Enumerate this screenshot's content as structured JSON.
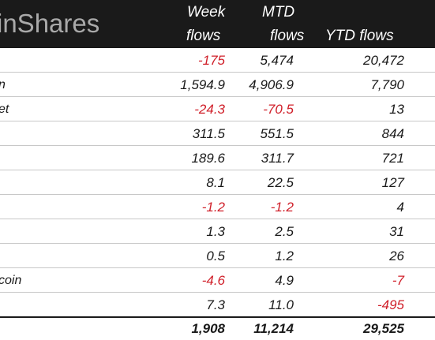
{
  "header": {
    "brand": "inShares",
    "col1_line1": "Week",
    "col1_line2": "flows",
    "col2_line1": "MTD",
    "col2_line2": "flows",
    "col3_line2": "YTD flows"
  },
  "rows": [
    {
      "name": "",
      "week": "-175",
      "mtd": "5,474",
      "ytd": "20,472",
      "week_neg": true,
      "mtd_neg": false,
      "ytd_neg": false
    },
    {
      "name": "n",
      "week": "1,594.9",
      "mtd": "4,906.9",
      "ytd": "7,790",
      "week_neg": false,
      "mtd_neg": false,
      "ytd_neg": false
    },
    {
      "name": "et",
      "week": "-24.3",
      "mtd": "-70.5",
      "ytd": "13",
      "week_neg": true,
      "mtd_neg": true,
      "ytd_neg": false
    },
    {
      "name": "",
      "week": "311.5",
      "mtd": "551.5",
      "ytd": "844",
      "week_neg": false,
      "mtd_neg": false,
      "ytd_neg": false
    },
    {
      "name": "",
      "week": "189.6",
      "mtd": "311.7",
      "ytd": "721",
      "week_neg": false,
      "mtd_neg": false,
      "ytd_neg": false
    },
    {
      "name": "",
      "week": "8.1",
      "mtd": "22.5",
      "ytd": "127",
      "week_neg": false,
      "mtd_neg": false,
      "ytd_neg": false
    },
    {
      "name": "",
      "week": "-1.2",
      "mtd": "-1.2",
      "ytd": "4",
      "week_neg": true,
      "mtd_neg": true,
      "ytd_neg": false
    },
    {
      "name": "",
      "week": "1.3",
      "mtd": "2.5",
      "ytd": "31",
      "week_neg": false,
      "mtd_neg": false,
      "ytd_neg": false
    },
    {
      "name": "",
      "week": "0.5",
      "mtd": "1.2",
      "ytd": "26",
      "week_neg": false,
      "mtd_neg": false,
      "ytd_neg": false
    },
    {
      "name": "coin",
      "week": "-4.6",
      "mtd": "4.9",
      "ytd": "-7",
      "week_neg": true,
      "mtd_neg": false,
      "ytd_neg": true
    },
    {
      "name": "",
      "week": "7.3",
      "mtd": "11.0",
      "ytd": "-495",
      "week_neg": false,
      "mtd_neg": false,
      "ytd_neg": true
    }
  ],
  "total": {
    "week": "1,908",
    "mtd": "11,214",
    "ytd": "29,525"
  },
  "colors": {
    "header_bg": "#1a1a1a",
    "negative": "#d0202a",
    "text": "#1a1a1a",
    "brand": "#a9a9a9"
  }
}
